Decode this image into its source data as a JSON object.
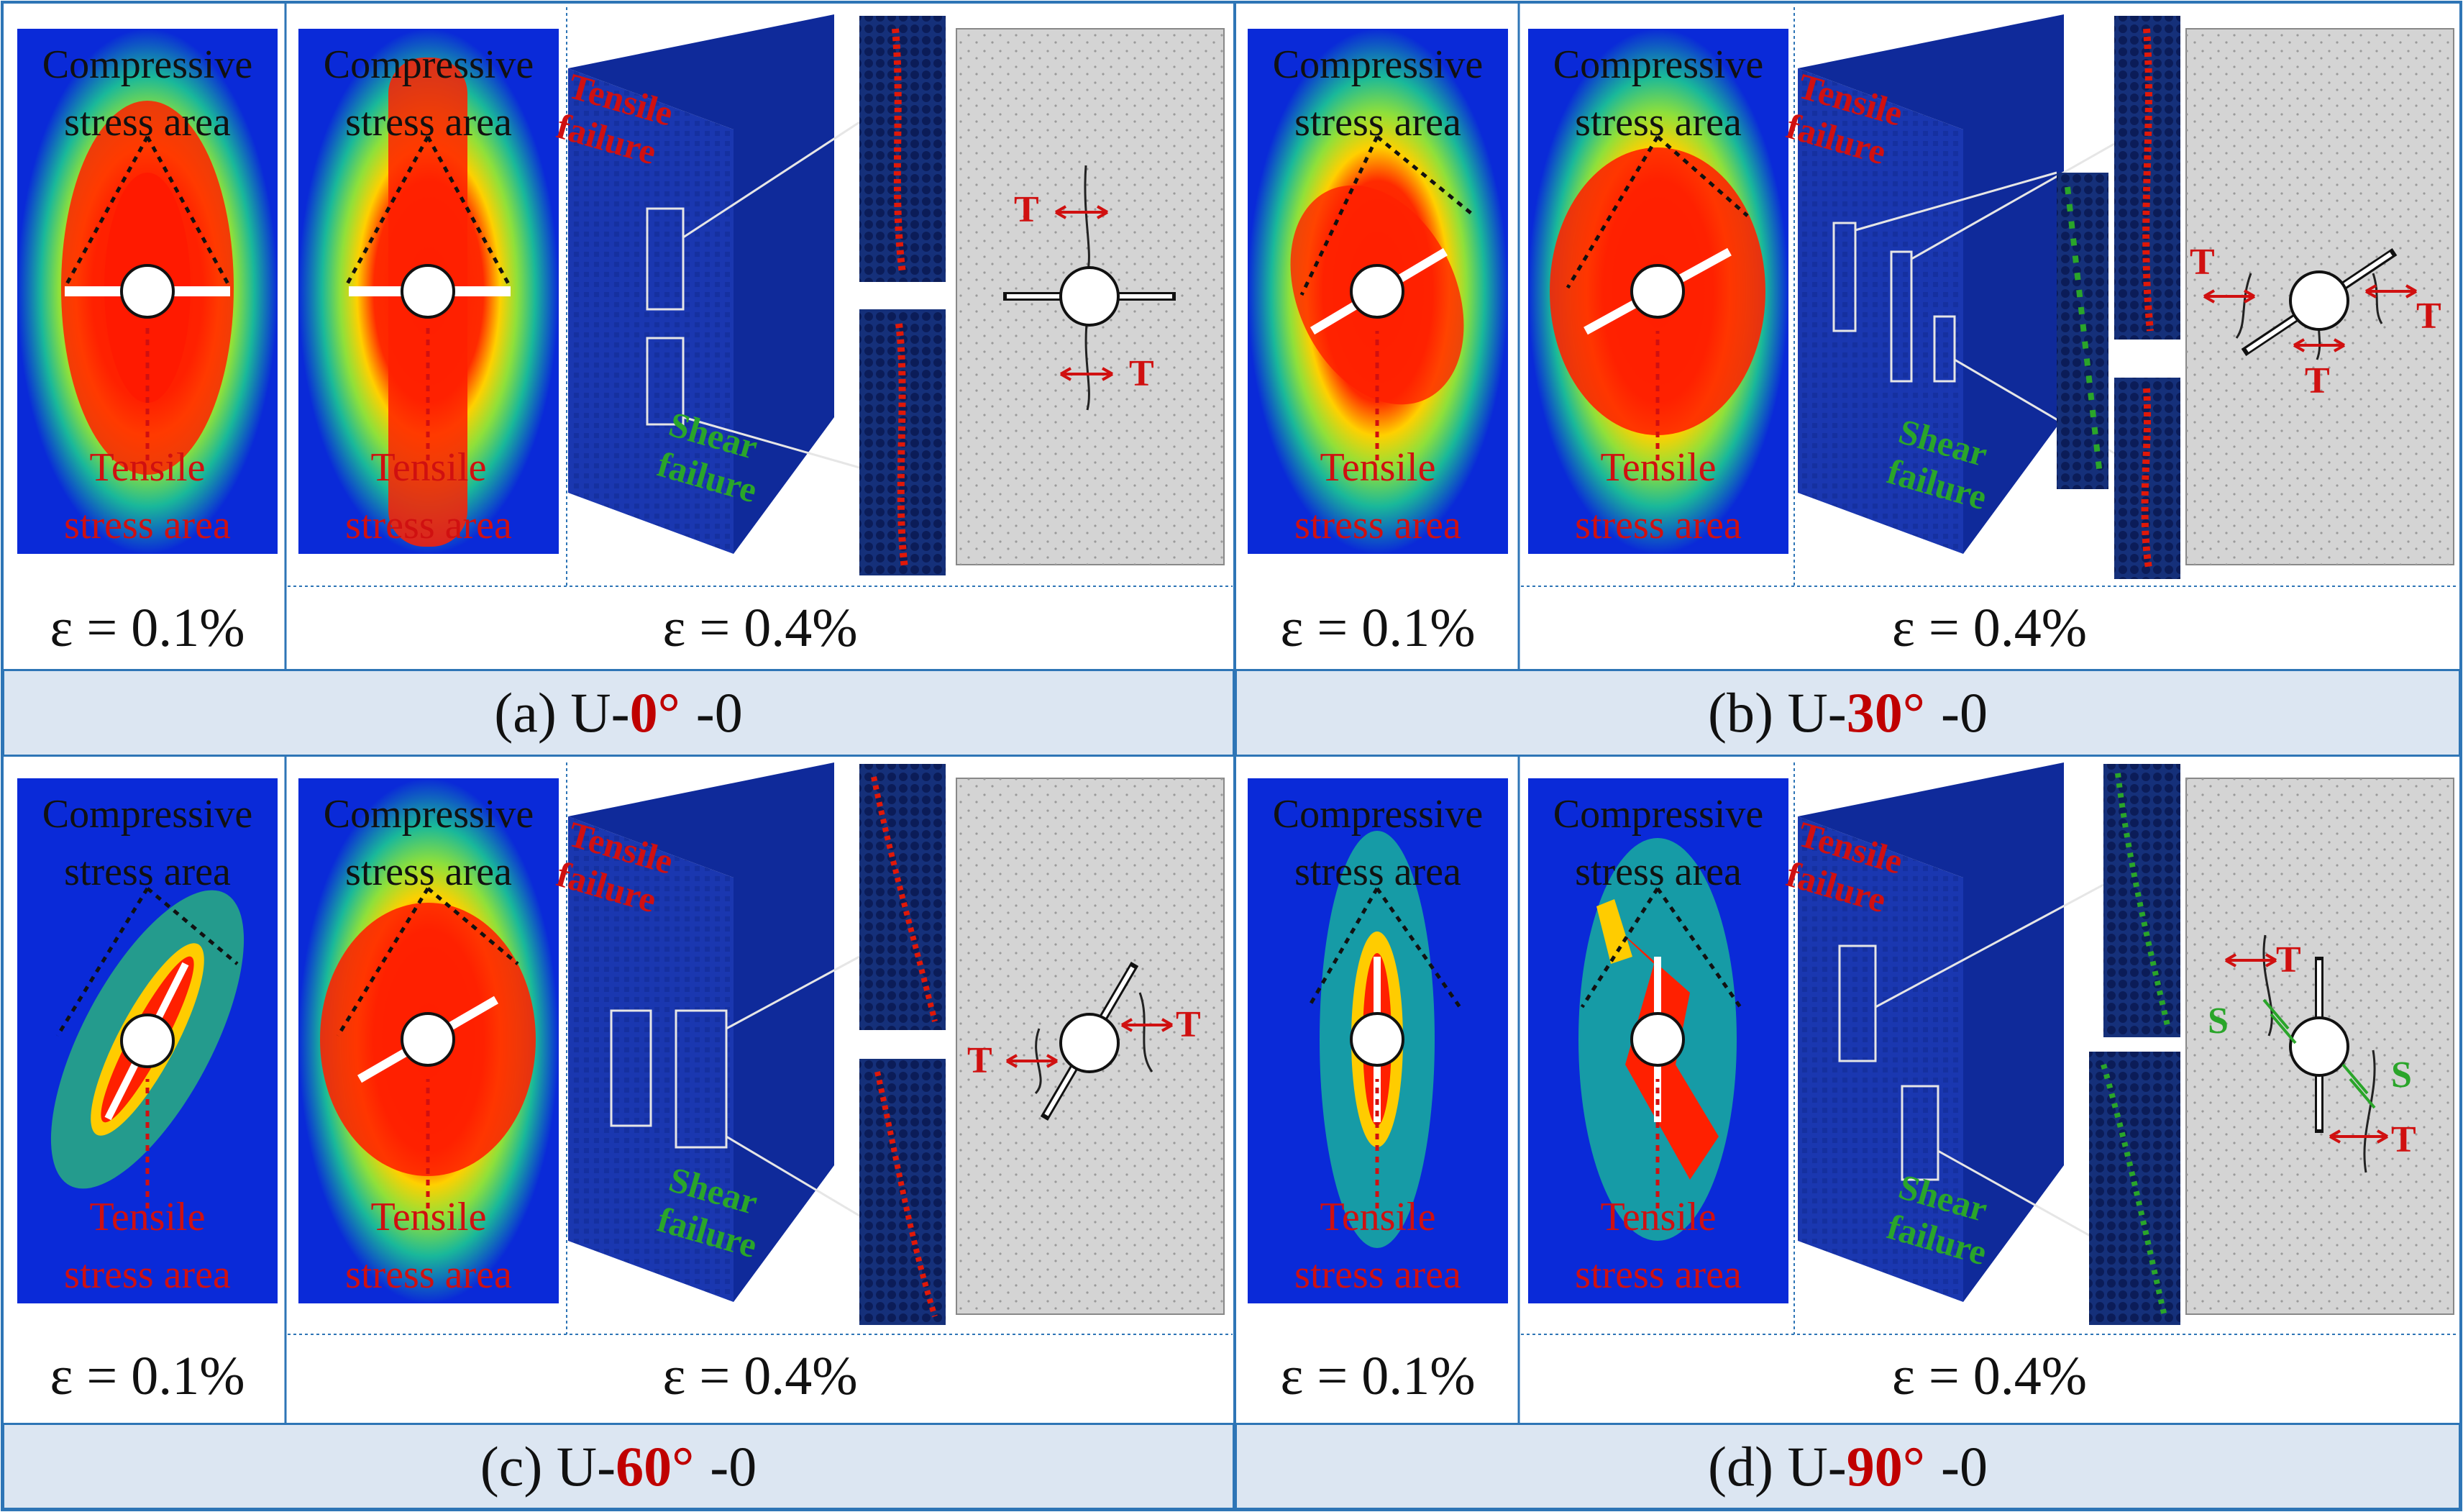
{
  "panels": [
    {
      "id": "a",
      "caption_prefix": "(a) U-",
      "angle": "0°",
      "caption_suffix": "-0"
    },
    {
      "id": "b",
      "caption_prefix": "(b) U-",
      "angle": "30°",
      "caption_suffix": "-0"
    },
    {
      "id": "c",
      "caption_prefix": "(c) U-",
      "angle": "60°",
      "caption_suffix": "-0"
    },
    {
      "id": "d",
      "caption_prefix": "(d) U-",
      "angle": "90°",
      "caption_suffix": "-0"
    }
  ],
  "labels": {
    "compressive_line1": "Compressive",
    "compressive_line2": "stress area",
    "tensile_line1": "Tensile",
    "tensile_line2": "stress area",
    "tensile_failure_line1": "Tensile",
    "tensile_failure_line2": "failure",
    "shear_failure_line1": "Shear",
    "shear_failure_line2": "failure",
    "strain_low": "ε = 0.1%",
    "strain_high": "ε = 0.4%",
    "tensile_symbol": "T",
    "shear_symbol": "S"
  },
  "colors": {
    "frame": "#2e75b6",
    "caption_band": "#dce6f2",
    "compressive": "#0a2ad8",
    "tensile": "#ff1a00",
    "shear": "#2aa52a",
    "crack_panel": "#d4d4d4"
  }
}
